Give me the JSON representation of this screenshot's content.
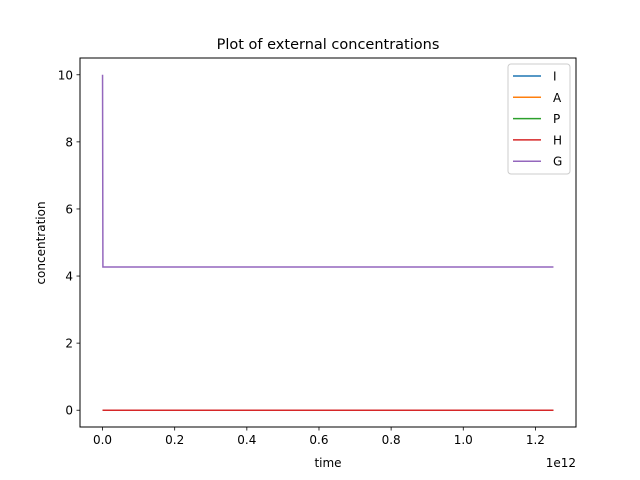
{
  "chart_data": {
    "type": "line",
    "title": "Plot of external concentrations",
    "xlabel": "time",
    "ylabel": "concentration",
    "x_offset_label": "1e12",
    "xlim": [
      -0.0625,
      1.3125
    ],
    "ylim": [
      -0.5,
      10.5
    ],
    "x_ticks": [
      0.0,
      0.2,
      0.4,
      0.6,
      0.8,
      1.0,
      1.2
    ],
    "x_tick_labels": [
      "0.0",
      "0.2",
      "0.4",
      "0.6",
      "0.8",
      "1.0",
      "1.2"
    ],
    "y_ticks": [
      0,
      2,
      4,
      6,
      8,
      10
    ],
    "y_tick_labels": [
      "0",
      "2",
      "4",
      "6",
      "8",
      "10"
    ],
    "grid": false,
    "legend_position": "top-right",
    "series": [
      {
        "name": "I",
        "color": "#1f77b4",
        "x": [
          0,
          0.001,
          1.25
        ],
        "y": [
          0,
          0,
          0
        ]
      },
      {
        "name": "A",
        "color": "#ff7f0e",
        "x": [
          0,
          0.001,
          1.25
        ],
        "y": [
          0,
          0,
          0
        ]
      },
      {
        "name": "P",
        "color": "#2ca02c",
        "x": [
          0,
          0.001,
          1.25
        ],
        "y": [
          0,
          0,
          0
        ]
      },
      {
        "name": "H",
        "color": "#d62728",
        "x": [
          0,
          0.001,
          1.25
        ],
        "y": [
          0,
          0,
          0
        ]
      },
      {
        "name": "G",
        "color": "#9467bd",
        "x": [
          0,
          0.001,
          1.25
        ],
        "y": [
          10,
          4.27,
          4.27
        ]
      }
    ]
  }
}
